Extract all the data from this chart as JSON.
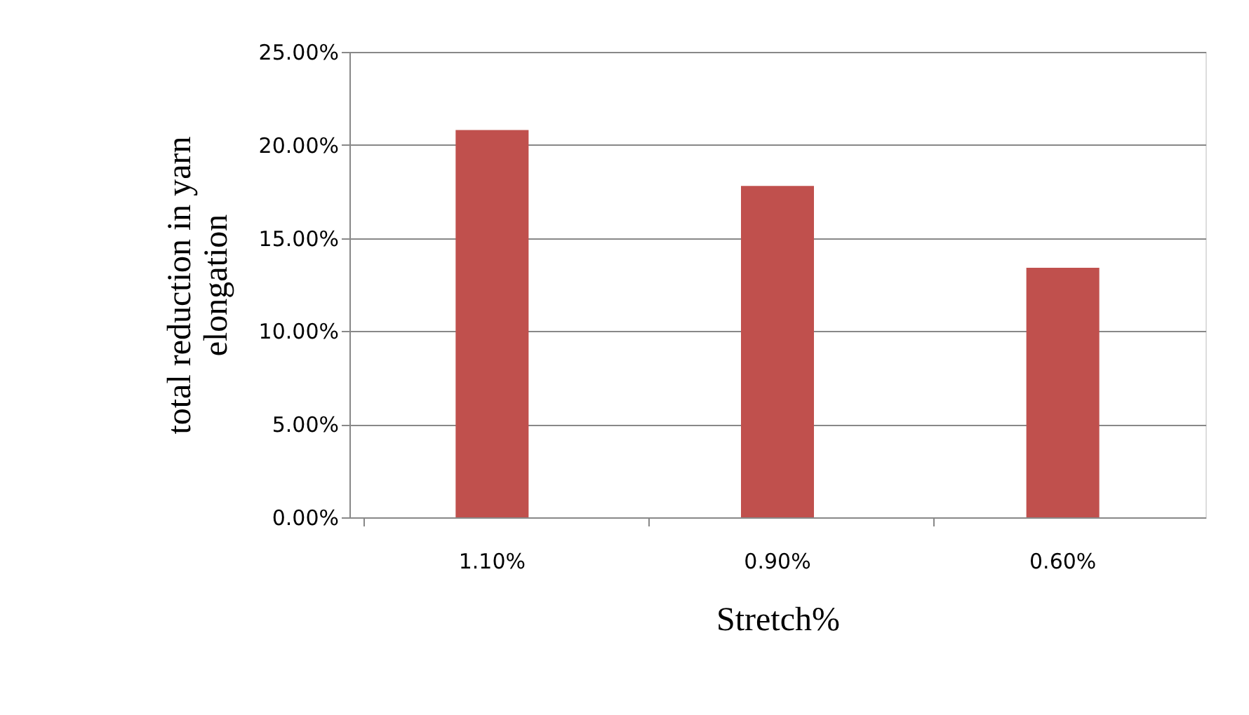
{
  "chart_data": {
    "type": "bar",
    "xlabel": "Stretch%",
    "ylabel": "total reduction in yarn elongation",
    "categories": [
      "1.10%",
      "0.90%",
      "0.60%"
    ],
    "values": [
      20.8,
      17.8,
      13.4
    ],
    "color": "#c0504d",
    "ylim": [
      0,
      25
    ],
    "yticks": [
      {
        "value": 0,
        "label": "0.00%"
      },
      {
        "value": 5,
        "label": "5.00%"
      },
      {
        "value": 10,
        "label": "10.00%"
      },
      {
        "value": 15,
        "label": "15.00%"
      },
      {
        "value": 20,
        "label": "20.00%"
      },
      {
        "value": 25,
        "label": "25.00%"
      }
    ],
    "grid": "y"
  }
}
